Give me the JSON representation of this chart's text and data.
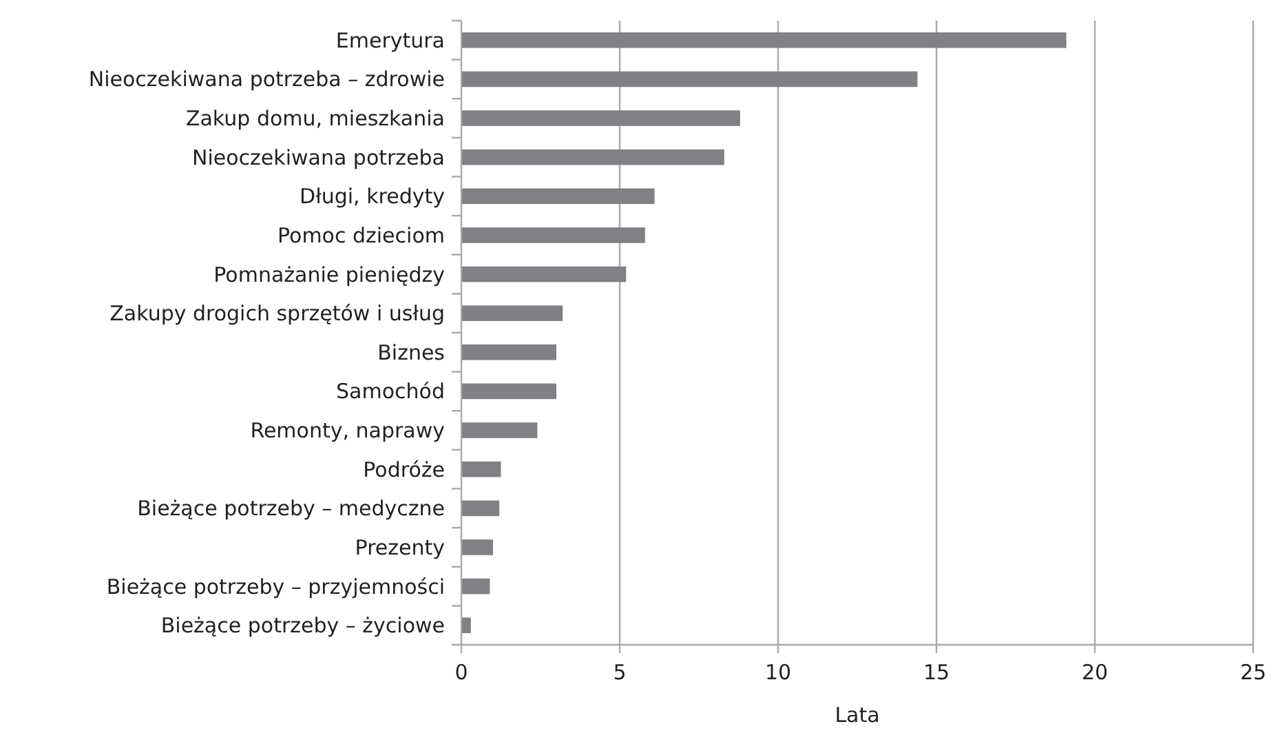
{
  "chart_data": {
    "type": "bar",
    "orientation": "horizontal",
    "xlabel": "Lata",
    "categories": [
      "Emerytura",
      "Nieoczekiwana potrzeba – zdrowie",
      "Zakup domu, mieszkania",
      "Nieoczekiwana potrzeba",
      "Długi, kredyty",
      "Pomoc dzieciom",
      "Pomnażanie pieniędzy",
      "Zakupy drogich sprzętów i usług",
      "Biznes",
      "Samochód",
      "Remonty, naprawy",
      "Podróże",
      "Bieżące potrzeby – medyczne",
      "Prezenty",
      "Bieżące potrzeby – przyjemności",
      "Bieżące potrzeby – życiowe"
    ],
    "values": [
      19.1,
      14.4,
      8.8,
      8.3,
      6.1,
      5.8,
      5.2,
      3.2,
      3.0,
      3.0,
      2.4,
      1.25,
      1.2,
      1.0,
      0.9,
      0.3
    ],
    "color": "#808184",
    "xlim": [
      0,
      25
    ],
    "xticks": [
      0,
      5,
      10,
      15,
      20,
      25
    ],
    "grid": "x"
  }
}
